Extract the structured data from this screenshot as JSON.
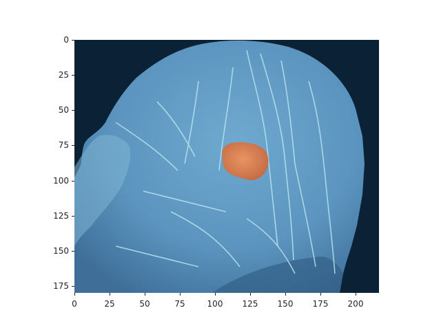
{
  "image": {
    "subject": "sagittal-head-mri-volume-render",
    "background_color": "#0b2236",
    "tissue_color": "#5f9ec6",
    "vessel_color": "#b8e2ef",
    "tumor_color": "#e07a4a"
  },
  "axes": {
    "x_ticks": [
      "0",
      "25",
      "50",
      "75",
      "100",
      "125",
      "150",
      "175",
      "200"
    ],
    "y_ticks": [
      "0",
      "25",
      "50",
      "75",
      "100",
      "125",
      "150",
      "175"
    ],
    "x_range": [
      0,
      217
    ],
    "y_range": [
      0,
      180
    ]
  }
}
